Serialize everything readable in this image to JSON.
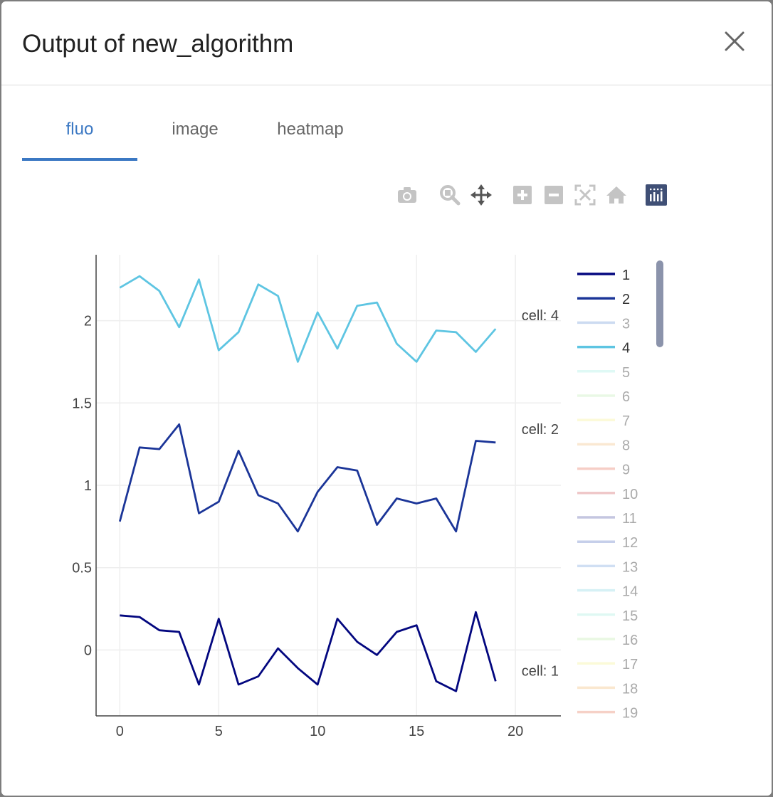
{
  "dialog": {
    "title": "Output of new_algorithm",
    "close_icon": "close-icon"
  },
  "tabs": [
    {
      "label": "fluo",
      "active": true
    },
    {
      "label": "image",
      "active": false
    },
    {
      "label": "heatmap",
      "active": false
    }
  ],
  "toolbar": {
    "icons": [
      "camera-icon",
      "zoom-icon",
      "pan-icon",
      "zoom-in-icon",
      "zoom-out-icon",
      "autoscale-icon",
      "reset-axes-icon",
      "plotly-logo-icon"
    ]
  },
  "chart_data": {
    "type": "line",
    "title": "",
    "xlabel": "",
    "ylabel": "",
    "xlim": [
      -1.2,
      22.3
    ],
    "ylim": [
      -0.4,
      2.4
    ],
    "xticks": [
      0,
      5,
      10,
      15,
      20
    ],
    "yticks": [
      0,
      0.5,
      1,
      1.5,
      2
    ],
    "ytick_labels": [
      "0",
      "0.5",
      "1",
      "1.5",
      "2"
    ],
    "grid": true,
    "legend": "right",
    "series": [
      {
        "name": "1",
        "color": "#03077f",
        "visible": true,
        "label": "cell: 1",
        "x": [
          0,
          1,
          2,
          3,
          4,
          5,
          6,
          7,
          8,
          9,
          10,
          11,
          12,
          13,
          14,
          15,
          16,
          17,
          18,
          19
        ],
        "y": [
          0.21,
          0.2,
          0.12,
          0.11,
          -0.21,
          0.19,
          -0.21,
          -0.16,
          0.01,
          -0.11,
          -0.21,
          0.19,
          0.05,
          -0.03,
          0.11,
          0.15,
          -0.19,
          -0.25,
          0.23,
          -0.19
        ]
      },
      {
        "name": "2",
        "color": "#1b3598",
        "visible": true,
        "label": "cell: 2",
        "x": [
          0,
          1,
          2,
          3,
          4,
          5,
          6,
          7,
          8,
          9,
          10,
          11,
          12,
          13,
          14,
          15,
          16,
          17,
          18,
          19
        ],
        "y": [
          0.78,
          1.23,
          1.22,
          1.37,
          0.83,
          0.9,
          1.21,
          0.94,
          0.89,
          0.72,
          0.96,
          1.11,
          1.09,
          0.76,
          0.92,
          0.89,
          0.92,
          0.72,
          1.27,
          1.26
        ]
      },
      {
        "name": "3",
        "color": "#9ab8e4",
        "visible": false
      },
      {
        "name": "4",
        "color": "#5ec5e2",
        "visible": true,
        "label": "cell: 4",
        "x": [
          0,
          1,
          2,
          3,
          4,
          5,
          6,
          7,
          8,
          9,
          10,
          11,
          12,
          13,
          14,
          15,
          16,
          17,
          18,
          19
        ],
        "y": [
          2.2,
          2.27,
          2.18,
          1.96,
          2.25,
          1.82,
          1.93,
          2.22,
          2.15,
          1.75,
          2.05,
          1.83,
          2.09,
          2.11,
          1.86,
          1.75,
          1.94,
          1.93,
          1.81,
          1.95
        ]
      },
      {
        "name": "5",
        "color": "#c1f4ec",
        "visible": false
      },
      {
        "name": "6",
        "color": "#d5f3cc",
        "visible": false
      },
      {
        "name": "7",
        "color": "#fbf6b4",
        "visible": false
      },
      {
        "name": "8",
        "color": "#f7d3a6",
        "visible": false
      },
      {
        "name": "9",
        "color": "#ef9e8f",
        "visible": false
      },
      {
        "name": "10",
        "color": "#e09295",
        "visible": false
      },
      {
        "name": "11",
        "color": "#8a8fc2",
        "visible": false
      },
      {
        "name": "12",
        "color": "#8ea0d6",
        "visible": false
      },
      {
        "name": "13",
        "color": "#a3c0e8",
        "visible": false
      },
      {
        "name": "14",
        "color": "#aee5ec",
        "visible": false
      },
      {
        "name": "15",
        "color": "#c0f2e8",
        "visible": false
      },
      {
        "name": "16",
        "color": "#d4f2c6",
        "visible": false
      },
      {
        "name": "17",
        "color": "#f8f6b2",
        "visible": false
      },
      {
        "name": "18",
        "color": "#f6d0a0",
        "visible": false
      },
      {
        "name": "19",
        "color": "#efa490",
        "visible": false
      }
    ]
  }
}
